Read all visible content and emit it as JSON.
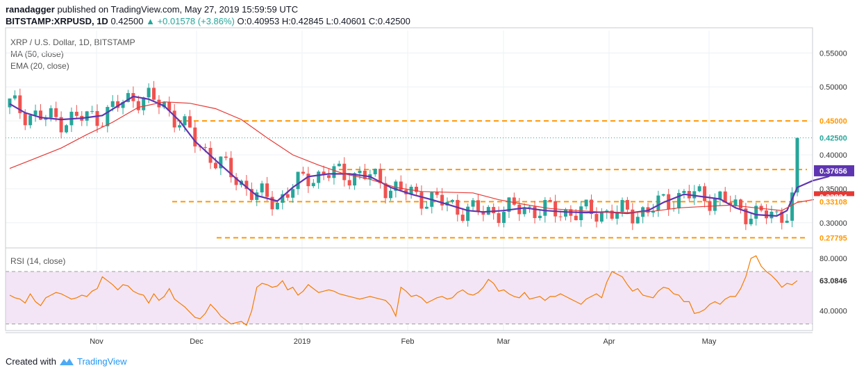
{
  "header": {
    "author": "ranadagger",
    "published": "published on TradingView.com, May 27, 2019 15:59:59 UTC",
    "symbol": "BITSTAMP:XRPUSD, 1D",
    "last": "0.42500",
    "change": "+0.01578 (+3.86%)",
    "ohlc": "O:0.40953 H:0.42845 L:0.40601 C:0.42500"
  },
  "legend": {
    "title": "XRP / U.S. Dollar, 1D, BITSTAMP",
    "ma": "MA (50, close)",
    "ema": "EMA (20, close)",
    "rsi": "RSI (14, close)"
  },
  "footer": {
    "created": "Created with",
    "brand": "TradingView"
  },
  "colors": {
    "up": "#26a69a",
    "down": "#ef5350",
    "level": "#ff9800",
    "ma": "#e53935",
    "ema": "#5e35b1",
    "rsi": "#f57c00",
    "rsi_band": "#f3e5f5"
  },
  "chart_data": [
    {
      "type": "candlestick",
      "title": "XRP / U.S. Dollar, 1D, BITSTAMP",
      "x_ticks": [
        "Nov",
        "Dec",
        "2019",
        "Feb",
        "Mar",
        "Apr",
        "May"
      ],
      "y_ticks": [
        "0.30000",
        "0.35000",
        "0.40000",
        "0.45000",
        "0.50000",
        "0.55000"
      ],
      "ylim": [
        0.263,
        0.583
      ],
      "horizontal_levels": [
        0.45,
        0.37835,
        0.33108,
        0.27795
      ],
      "price_labels": [
        {
          "value": 0.45,
          "text": "0.45000",
          "kind": "level"
        },
        {
          "value": 0.425,
          "text": "0.42500",
          "kind": "last"
        },
        {
          "value": 0.37835,
          "text": "0.37835",
          "kind": "level"
        },
        {
          "value": 0.37656,
          "text": "0.37656",
          "kind": "ema"
        },
        {
          "value": 0.33824,
          "text": "0.33824",
          "kind": "ma"
        },
        {
          "value": 0.33108,
          "text": "0.33108",
          "kind": "level"
        },
        {
          "value": 0.27795,
          "text": "0.27795",
          "kind": "level"
        }
      ],
      "last_close": 0.425,
      "series_path": [
        {
          "name": "EMA (20, close)",
          "points": [
            [
              0,
              0.475
            ],
            [
              3,
              0.462
            ],
            [
              6,
              0.455
            ],
            [
              10,
              0.452
            ],
            [
              14,
              0.454
            ],
            [
              18,
              0.458
            ],
            [
              21,
              0.472
            ],
            [
              24,
              0.486
            ],
            [
              27,
              0.482
            ],
            [
              30,
              0.472
            ],
            [
              33,
              0.45
            ],
            [
              36,
              0.42
            ],
            [
              40,
              0.392
            ],
            [
              44,
              0.365
            ],
            [
              48,
              0.34
            ],
            [
              52,
              0.332
            ],
            [
              55,
              0.352
            ],
            [
              58,
              0.368
            ],
            [
              62,
              0.372
            ],
            [
              66,
              0.372
            ],
            [
              70,
              0.368
            ],
            [
              74,
              0.352
            ],
            [
              78,
              0.342
            ],
            [
              82,
              0.334
            ],
            [
              86,
              0.325
            ],
            [
              89,
              0.318
            ],
            [
              92,
              0.316
            ],
            [
              96,
              0.318
            ],
            [
              100,
              0.322
            ],
            [
              104,
              0.318
            ],
            [
              108,
              0.316
            ],
            [
              112,
              0.315
            ],
            [
              116,
              0.316
            ],
            [
              120,
              0.314
            ],
            [
              124,
              0.318
            ],
            [
              127,
              0.33
            ],
            [
              131,
              0.342
            ],
            [
              135,
              0.338
            ],
            [
              138,
              0.335
            ],
            [
              141,
              0.322
            ],
            [
              145,
              0.312
            ],
            [
              149,
              0.31
            ],
            [
              151,
              0.318
            ],
            [
              153,
              0.352
            ],
            [
              156,
              0.362
            ],
            [
              159,
              0.368
            ],
            [
              161,
              0.377
            ]
          ]
        },
        {
          "name": "MA (50, close)",
          "points": [
            [
              0,
              0.38
            ],
            [
              5,
              0.395
            ],
            [
              10,
              0.41
            ],
            [
              15,
              0.43
            ],
            [
              20,
              0.448
            ],
            [
              25,
              0.47
            ],
            [
              30,
              0.478
            ],
            [
              35,
              0.476
            ],
            [
              40,
              0.468
            ],
            [
              45,
              0.452
            ],
            [
              50,
              0.425
            ],
            [
              55,
              0.4
            ],
            [
              60,
              0.385
            ],
            [
              65,
              0.372
            ],
            [
              70,
              0.364
            ],
            [
              75,
              0.352
            ],
            [
              80,
              0.346
            ],
            [
              85,
              0.345
            ],
            [
              90,
              0.344
            ],
            [
              95,
              0.334
            ],
            [
              100,
              0.327
            ],
            [
              105,
              0.321
            ],
            [
              110,
              0.318
            ],
            [
              115,
              0.316
            ],
            [
              120,
              0.315
            ],
            [
              125,
              0.317
            ],
            [
              130,
              0.322
            ],
            [
              135,
              0.324
            ],
            [
              140,
              0.326
            ],
            [
              145,
              0.322
            ],
            [
              150,
              0.318
            ],
            [
              153,
              0.33
            ],
            [
              156,
              0.334
            ],
            [
              159,
              0.336
            ],
            [
              161,
              0.338
            ]
          ]
        }
      ]
    },
    {
      "type": "line",
      "title": "RSI (14, close)",
      "series": [
        {
          "name": "RSI (14, close)",
          "values": [
            52,
            50,
            49,
            46,
            53,
            47,
            44,
            50,
            52,
            54,
            53,
            51,
            49,
            50,
            52,
            51,
            55,
            57,
            66,
            63,
            60,
            56,
            60,
            59,
            55,
            53,
            52,
            46,
            53,
            48,
            51,
            57,
            49,
            46,
            43,
            39,
            35,
            34,
            38,
            45,
            41,
            36,
            33,
            30,
            31,
            32,
            29,
            40,
            58,
            61,
            60,
            58,
            59,
            63,
            56,
            58,
            52,
            55,
            60,
            57,
            54,
            55,
            56,
            55,
            53,
            52,
            51,
            50,
            49,
            50,
            51,
            50,
            49,
            48,
            44,
            36,
            58,
            55,
            51,
            52,
            50,
            46,
            48,
            50,
            51,
            49,
            50,
            54,
            56,
            53,
            52,
            54,
            58,
            64,
            61,
            55,
            56,
            53,
            51,
            50,
            54,
            49,
            50,
            51,
            48,
            51,
            51,
            53,
            51,
            49,
            47,
            45,
            49,
            51,
            53,
            50,
            62,
            70,
            68,
            66,
            60,
            55,
            57,
            52,
            51,
            50,
            55,
            58,
            57,
            53,
            52,
            47,
            47,
            38,
            39,
            41,
            45,
            47,
            45,
            49,
            51,
            51,
            57,
            66,
            80,
            82,
            74,
            70,
            67,
            63,
            58,
            61,
            60,
            63
          ]
        }
      ],
      "y_ticks": [
        "40.0000",
        "80.0000"
      ],
      "ylim": [
        25,
        88
      ],
      "bands": [
        30,
        70
      ],
      "last_value_label": "63.0846"
    }
  ]
}
